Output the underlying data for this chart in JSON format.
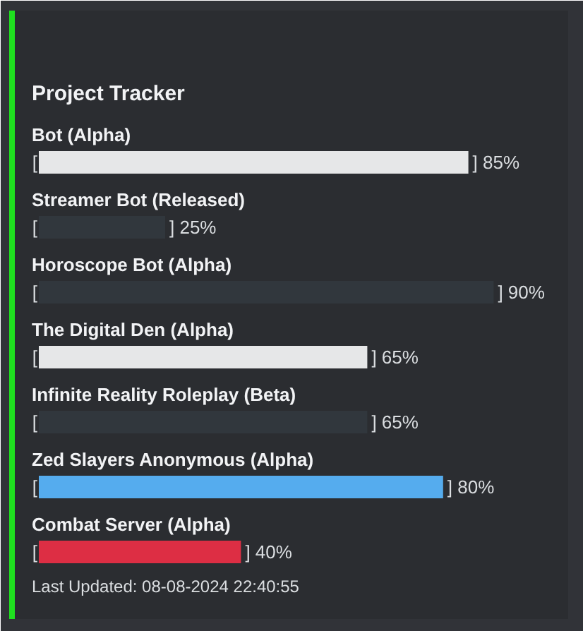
{
  "chart_data": {
    "type": "bar",
    "orientation": "horizontal",
    "title": "Project Tracker",
    "categories": [
      "Bot (Alpha)",
      "Streamer Bot (Released)",
      "Horoscope Bot (Alpha)",
      "The Digital Den (Alpha)",
      "Infinite Reality Roleplay (Beta)",
      "Zed Slayers Anonymous (Alpha)",
      "Combat Server (Alpha)"
    ],
    "values": [
      85,
      25,
      90,
      65,
      65,
      80,
      40
    ],
    "colors": [
      "#e6e7e8",
      "#31373d",
      "#31373d",
      "#e6e7e8",
      "#31373d",
      "#55acee",
      "#dd2e44"
    ],
    "value_labels": [
      "] 85%",
      "] 25%",
      "] 90%",
      "] 65%",
      "] 65%",
      "] 80%",
      "] 40%"
    ],
    "annotations": [
      {
        "text": "[",
        "y": "Bot (Alpha)"
      },
      {
        "text": "[",
        "y": "Streamer Bot (Released)"
      },
      {
        "text": "[",
        "y": "Horoscope Bot (Alpha)"
      },
      {
        "text": "[",
        "y": "The Digital Den (Alpha)"
      },
      {
        "text": "[",
        "y": "Infinite Reality Roleplay (Beta)"
      },
      {
        "text": "[",
        "y": "Zed Slayers Anonymous (Alpha)"
      },
      {
        "text": "[",
        "y": "Combat Server (Alpha)"
      },
      "Last Updated: 08-08-2024 22:40:55"
    ]
  }
}
